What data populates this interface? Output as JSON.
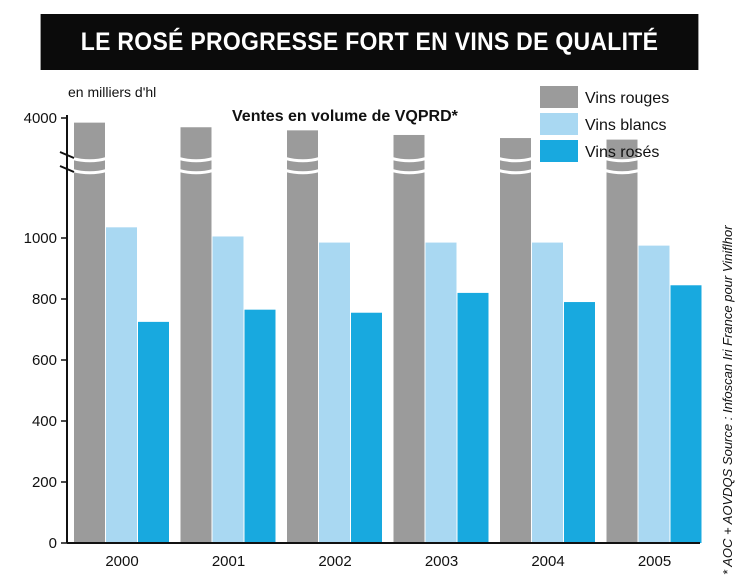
{
  "title": "LE ROSÉ PROGRESSE FORT EN VINS DE QUALITÉ",
  "side_note": "* AOC + AOVDQS  Source : Infoscan Iri France pour Viniflhor",
  "chart_data": {
    "type": "bar",
    "subtitle": "Ventes en volume de VQPRD*",
    "ylabel": "en milliers d'hl",
    "ylim": [
      0,
      4000
    ],
    "axis_break": true,
    "yticks": [
      "0",
      "200",
      "400",
      "600",
      "800",
      "1000",
      "4000"
    ],
    "categories": [
      "2000",
      "2001",
      "2002",
      "2003",
      "2004",
      "2005"
    ],
    "series": [
      {
        "name": "Vins rouges",
        "color": "#9b9b9b",
        "values": [
          3850,
          3700,
          3600,
          3450,
          3350,
          3300
        ]
      },
      {
        "name": "Vins blancs",
        "color": "#a9d8f2",
        "values": [
          1035,
          1005,
          985,
          985,
          985,
          975
        ]
      },
      {
        "name": "Vins rosés",
        "color": "#18a9df",
        "values": [
          725,
          765,
          755,
          820,
          790,
          845
        ]
      }
    ],
    "legend_position": "top-right",
    "grid": false
  }
}
